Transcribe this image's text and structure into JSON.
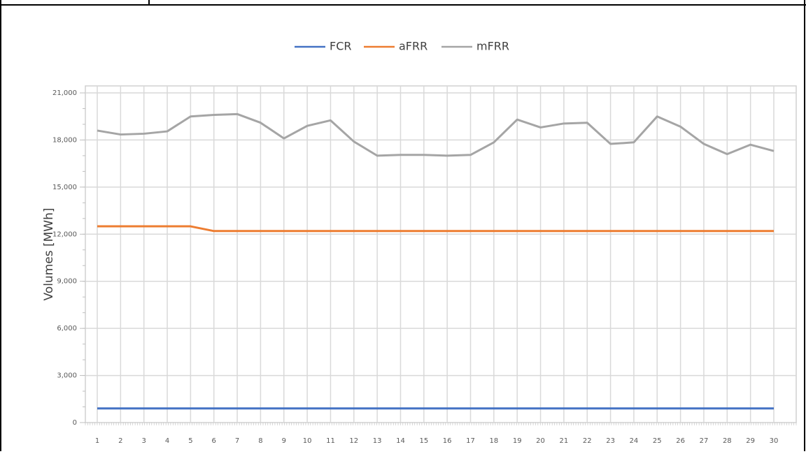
{
  "chart_data": {
    "type": "line",
    "y_axis_label": "Volumes [MWh]",
    "categories": [
      "1",
      "2",
      "3",
      "4",
      "5",
      "6",
      "7",
      "8",
      "9",
      "10",
      "11",
      "12",
      "13",
      "14",
      "15",
      "16",
      "17",
      "18",
      "19",
      "20",
      "21",
      "22",
      "23",
      "24",
      "25",
      "26",
      "27",
      "28",
      "29",
      "30"
    ],
    "series": [
      {
        "name": "FCR",
        "color": "#4472c4",
        "values": [
          900,
          900,
          900,
          900,
          900,
          900,
          900,
          900,
          900,
          900,
          900,
          900,
          900,
          900,
          900,
          900,
          900,
          900,
          900,
          900,
          900,
          900,
          900,
          900,
          900,
          900,
          900,
          900,
          900,
          900
        ]
      },
      {
        "name": "aFRR",
        "color": "#ed7d31",
        "values": [
          12500,
          12500,
          12500,
          12500,
          12500,
          12200,
          12200,
          12200,
          12200,
          12200,
          12200,
          12200,
          12200,
          12200,
          12200,
          12200,
          12200,
          12200,
          12200,
          12200,
          12200,
          12200,
          12200,
          12200,
          12200,
          12200,
          12200,
          12200,
          12200,
          12200
        ]
      },
      {
        "name": "mFRR",
        "color": "#a5a5a5",
        "values": [
          18600,
          18350,
          18400,
          18550,
          19500,
          19600,
          19650,
          19100,
          18100,
          18900,
          19250,
          17900,
          17000,
          17050,
          17050,
          17000,
          17050,
          17850,
          19300,
          18800,
          19050,
          19100,
          17750,
          17850,
          19500,
          18850,
          17750,
          17100,
          17700,
          17300
        ]
      }
    ],
    "ylim": [
      0,
      21000
    ],
    "yticks": [
      0,
      {
        "value": 3000,
        "label": "3,000"
      },
      {
        "value": 6000,
        "label": "6,000"
      },
      {
        "value": 9000,
        "label": "9,000"
      },
      {
        "value": 12000,
        "label": "12,000"
      },
      {
        "value": 15000,
        "label": "15,000"
      },
      {
        "value": 18000,
        "label": "18,000"
      },
      {
        "value": 21000,
        "label": "21,000"
      }
    ],
    "grid": true
  }
}
